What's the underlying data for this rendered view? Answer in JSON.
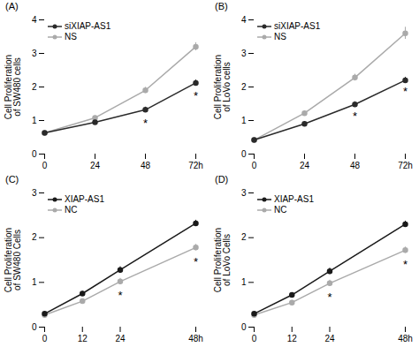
{
  "chart_data": [
    {
      "type": "line",
      "title": "(A)",
      "ylabel": "Cell Proliferation\nof SW480 cells",
      "x": [
        0,
        24,
        48,
        72
      ],
      "xlim": [
        0,
        72
      ],
      "xticks": [
        0,
        24,
        48,
        {
          "value": 72,
          "label": "72h"
        }
      ],
      "ylim": [
        0,
        4
      ],
      "yticks": [
        0,
        1,
        2,
        3,
        4
      ],
      "series": [
        {
          "name": "siXIAP-AS1",
          "color": "#2a2a2a",
          "values": [
            0.63,
            0.95,
            1.32,
            2.12
          ],
          "errors": [
            0.04,
            0.06,
            0.08,
            0.09
          ]
        },
        {
          "name": "NS",
          "color": "#aaaaaa",
          "values": [
            0.63,
            1.08,
            1.9,
            3.2
          ],
          "errors": [
            0.04,
            0.06,
            0.09,
            0.12
          ]
        }
      ],
      "annotations": [
        {
          "text": "*",
          "x": 48,
          "y": 1.05
        },
        {
          "text": "*",
          "x": 72,
          "y": 1.85
        }
      ],
      "legend": "upper left"
    },
    {
      "type": "line",
      "title": "(B)",
      "ylabel": "Cell Proliferation\nof LoVo cells",
      "x": [
        0,
        24,
        48,
        72
      ],
      "xlim": [
        0,
        72
      ],
      "xticks": [
        0,
        24,
        48,
        {
          "value": 72,
          "label": "72h"
        }
      ],
      "ylim": [
        0,
        4
      ],
      "yticks": [
        0,
        1,
        2,
        3,
        4
      ],
      "series": [
        {
          "name": "siXIAP-AS1",
          "color": "#2a2a2a",
          "values": [
            0.42,
            0.9,
            1.48,
            2.2
          ],
          "errors": [
            0.04,
            0.06,
            0.08,
            0.09
          ]
        },
        {
          "name": "NS",
          "color": "#aaaaaa",
          "values": [
            0.42,
            1.22,
            2.28,
            3.6
          ],
          "errors": [
            0.04,
            0.07,
            0.1,
            0.18
          ]
        }
      ],
      "annotations": [
        {
          "text": "*",
          "x": 48,
          "y": 1.25
        },
        {
          "text": "*",
          "x": 72,
          "y": 1.98
        }
      ],
      "legend": "upper left"
    },
    {
      "type": "line",
      "title": "(C)",
      "ylabel": "Cell Proliferation\nof SW480 Cells",
      "x": [
        0,
        12,
        24,
        48
      ],
      "xlim": [
        0,
        48
      ],
      "xticks": [
        0,
        12,
        24,
        {
          "value": 48,
          "label": "48h"
        }
      ],
      "ylim": [
        0,
        3
      ],
      "yticks": [
        0,
        1,
        2,
        3
      ],
      "series": [
        {
          "name": "XIAP-AS1",
          "color": "#1a1a1a",
          "values": [
            0.3,
            0.75,
            1.28,
            2.32
          ],
          "errors": [
            0.03,
            0.05,
            0.07,
            0.07
          ]
        },
        {
          "name": "NC",
          "color": "#aaaaaa",
          "values": [
            0.27,
            0.58,
            1.02,
            1.78
          ],
          "errors": [
            0.03,
            0.05,
            0.07,
            0.07
          ]
        }
      ],
      "annotations": [
        {
          "text": "*",
          "x": 24,
          "y": 0.8
        },
        {
          "text": "*",
          "x": 48,
          "y": 1.55
        }
      ],
      "legend": "upper left"
    },
    {
      "type": "line",
      "title": "(D)",
      "ylabel": "Cell Proliferation\nof LoVo Cells",
      "x": [
        0,
        12,
        24,
        48
      ],
      "xlim": [
        0,
        48
      ],
      "xticks": [
        0,
        12,
        24,
        {
          "value": 48,
          "label": "48h"
        }
      ],
      "ylim": [
        0,
        3
      ],
      "yticks": [
        0,
        1,
        2,
        3
      ],
      "series": [
        {
          "name": "XIAP-AS1",
          "color": "#1a1a1a",
          "values": [
            0.3,
            0.72,
            1.25,
            2.3
          ],
          "errors": [
            0.03,
            0.05,
            0.07,
            0.07
          ]
        },
        {
          "name": "NC",
          "color": "#aaaaaa",
          "values": [
            0.27,
            0.55,
            0.98,
            1.72
          ],
          "errors": [
            0.03,
            0.05,
            0.07,
            0.07
          ]
        }
      ],
      "annotations": [
        {
          "text": "*",
          "x": 24,
          "y": 0.76
        },
        {
          "text": "*",
          "x": 48,
          "y": 1.5
        }
      ],
      "legend": "upper left"
    }
  ]
}
